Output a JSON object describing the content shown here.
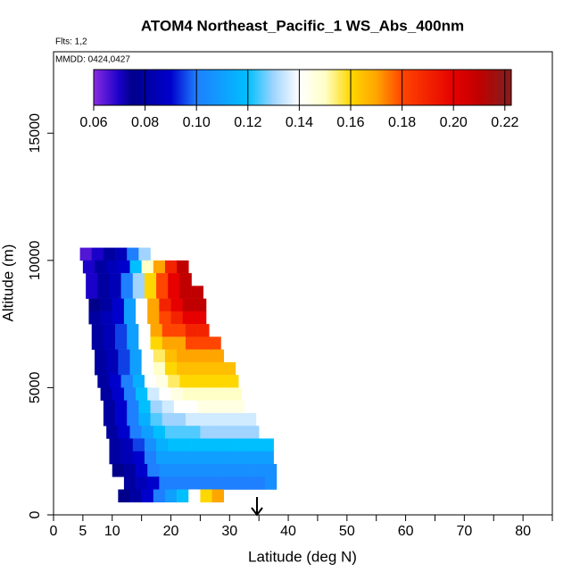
{
  "chart_data": {
    "type": "curtain",
    "title": "ATOM4 Northeast_Pacific_1 WS_Abs_400nm",
    "flights_label": "Flts: 1,2",
    "dates_label": "MMDD: 0424,0427",
    "xlabel": "Latitude (deg N)",
    "ylabel": "Altitude (m)",
    "xlim": [
      0,
      85
    ],
    "xticks": [
      0,
      5,
      10,
      20,
      30,
      40,
      50,
      60,
      70,
      80
    ],
    "xminorticks": [
      15,
      25,
      35,
      45,
      55,
      65,
      75,
      85
    ],
    "ylim": [
      0,
      18200
    ],
    "yticks": [
      0,
      5000,
      10000,
      15000
    ],
    "lat_step": 2,
    "alt_step": 500,
    "colorbar_lim": [
      0.06,
      0.2225
    ],
    "colorbar_ticks": [
      0.06,
      0.08,
      {
        "value": 0.1,
        "label": "0.10"
      },
      0.12,
      0.14,
      0.16,
      0.18,
      {
        "value": 0.2,
        "label": "0.20"
      },
      0.22
    ],
    "colormap": [
      {
        "value": 0.06,
        "color": "#8a2be2"
      },
      {
        "value": 0.07,
        "color": "#1a00c8"
      },
      {
        "value": 0.075,
        "color": "#00008b"
      },
      {
        "value": 0.09,
        "color": "#0000cd"
      },
      {
        "value": 0.1,
        "color": "#1e7fff"
      },
      {
        "value": 0.12,
        "color": "#00bfff"
      },
      {
        "value": 0.13,
        "color": "#a0d4ff"
      },
      {
        "value": 0.14,
        "color": "#ffffff"
      },
      {
        "value": 0.15,
        "color": "#ffffc8"
      },
      {
        "value": 0.16,
        "color": "#ffd700"
      },
      {
        "value": 0.17,
        "color": "#ffa500"
      },
      {
        "value": 0.18,
        "color": "#ff4500"
      },
      {
        "value": 0.2,
        "color": "#e60000"
      },
      {
        "value": 0.21,
        "color": "#c00000"
      },
      {
        "value": 0.22,
        "color": "#8b1a1a"
      }
    ],
    "rows": [
      {
        "altitude": 10000,
        "lat_start": 4.5,
        "values": [
          0.065,
          0.07,
          0.08,
          0.085,
          0.1,
          0.13
        ]
      },
      {
        "altitude": 9500,
        "lat_start": 5,
        "values": [
          0.07,
          0.08,
          0.085,
          0.09,
          0.12,
          0.15,
          0.17,
          0.19,
          0.21
        ]
      },
      {
        "altitude": 9000,
        "lat_start": 5.5,
        "values": [
          0.07,
          0.08,
          0.085,
          0.1,
          0.13,
          0.16,
          0.18,
          0.2,
          0.21
        ]
      },
      {
        "altitude": 8500,
        "lat_start": 5.5,
        "values": [
          0.07,
          0.08,
          0.085,
          0.1,
          0.13,
          0.16,
          0.18,
          0.2,
          0.21,
          0.21
        ]
      },
      {
        "altitude": 8000,
        "lat_start": 6,
        "values": [
          0.075,
          0.08,
          0.09,
          0.11,
          0.14,
          0.17,
          0.19,
          0.2,
          0.21,
          0.21
        ]
      },
      {
        "altitude": 7500,
        "lat_start": 6,
        "values": [
          0.08,
          0.085,
          0.09,
          0.11,
          0.14,
          0.17,
          0.18,
          0.19,
          0.2,
          0.2
        ]
      },
      {
        "altitude": 7000,
        "lat_start": 6.5,
        "values": [
          0.08,
          0.085,
          0.095,
          0.11,
          0.14,
          0.17,
          0.18,
          0.18,
          0.19,
          0.19
        ]
      },
      {
        "altitude": 6500,
        "lat_start": 6.5,
        "values": [
          0.08,
          0.085,
          0.095,
          0.11,
          0.14,
          0.16,
          0.17,
          0.17,
          0.18,
          0.18,
          0.18
        ]
      },
      {
        "altitude": 6000,
        "lat_start": 7,
        "values": [
          0.08,
          0.085,
          0.095,
          0.11,
          0.14,
          0.155,
          0.165,
          0.17,
          0.17,
          0.17,
          0.17
        ]
      },
      {
        "altitude": 5500,
        "lat_start": 7,
        "values": [
          0.08,
          0.085,
          0.095,
          0.11,
          0.14,
          0.15,
          0.16,
          0.165,
          0.165,
          0.165,
          0.165,
          0.165
        ]
      },
      {
        "altitude": 5000,
        "lat_start": 7.5,
        "values": [
          0.08,
          0.09,
          0.1,
          0.115,
          0.14,
          0.145,
          0.155,
          0.16,
          0.16,
          0.16,
          0.16,
          0.16
        ]
      },
      {
        "altitude": 4500,
        "lat_start": 8,
        "values": [
          0.08,
          0.09,
          0.1,
          0.12,
          0.135,
          0.14,
          0.145,
          0.15,
          0.15,
          0.15,
          0.15,
          0.15
        ]
      },
      {
        "altitude": 4000,
        "lat_start": 8.5,
        "values": [
          0.08,
          0.09,
          0.1,
          0.12,
          0.13,
          0.135,
          0.14,
          0.14,
          0.145,
          0.145,
          0.145,
          0.145
        ]
      },
      {
        "altitude": 3500,
        "lat_start": 8.5,
        "values": [
          0.08,
          0.09,
          0.1,
          0.115,
          0.125,
          0.13,
          0.13,
          0.135,
          0.135,
          0.135,
          0.135,
          0.135,
          0.135
        ]
      },
      {
        "altitude": 3000,
        "lat_start": 9,
        "values": [
          0.08,
          0.09,
          0.1,
          0.11,
          0.12,
          0.125,
          0.125,
          0.125,
          0.13,
          0.13,
          0.13,
          0.13,
          0.13
        ]
      },
      {
        "altitude": 2500,
        "lat_start": 9.5,
        "values": [
          0.08,
          0.085,
          0.095,
          0.105,
          0.115,
          0.12,
          0.12,
          0.12,
          0.12,
          0.12,
          0.12,
          0.12,
          0.12,
          0.12
        ]
      },
      {
        "altitude": 2000,
        "lat_start": 9.5,
        "values": [
          0.08,
          0.085,
          0.09,
          0.1,
          0.11,
          0.11,
          0.11,
          0.11,
          0.11,
          0.11,
          0.11,
          0.11,
          0.11,
          0.11
        ]
      },
      {
        "altitude": 1500,
        "lat_start": 10,
        "values": [
          0.075,
          0.08,
          0.09,
          0.1,
          0.105,
          0.105,
          0.105,
          0.105,
          0.105,
          0.105,
          0.105,
          0.105,
          0.105,
          0.105
        ]
      },
      {
        "altitude": 1000,
        "lat_start": 12,
        "values": [
          0.08,
          0.085,
          0.09,
          0.1,
          0.1,
          0.1,
          0.1,
          0.1,
          0.1,
          0.1,
          0.1,
          0.1,
          0.105
        ]
      },
      {
        "altitude": 500,
        "lat_start": 11,
        "values": [
          0.075,
          0.08,
          0.09,
          0.1,
          0.11,
          0.12,
          0.14,
          0.16,
          0.17
        ]
      }
    ]
  }
}
